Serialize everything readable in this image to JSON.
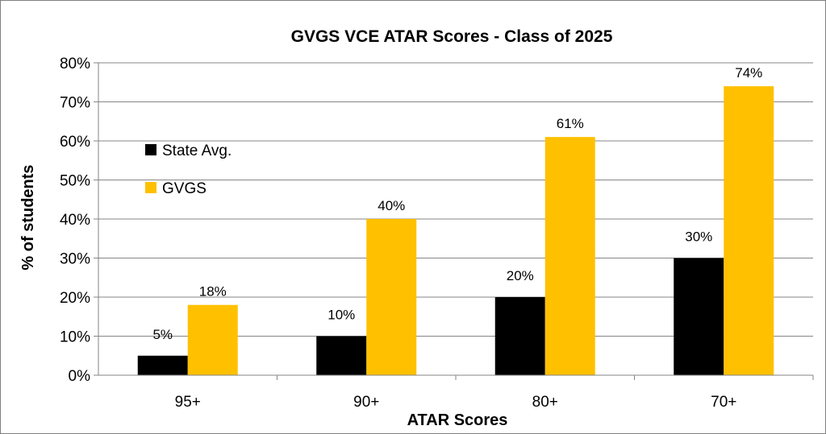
{
  "chart_data": {
    "type": "bar",
    "title": "GVGS VCE ATAR Scores - Class of 2025",
    "xlabel": "ATAR Scores",
    "ylabel": "% of students",
    "categories": [
      "95+",
      "90+",
      "80+",
      "70+"
    ],
    "series": [
      {
        "name": "State Avg.",
        "color": "#000000",
        "values": [
          5,
          10,
          20,
          30
        ],
        "labels": [
          "5%",
          "10%",
          "20%",
          "30%"
        ]
      },
      {
        "name": "GVGS",
        "color": "#FFC000",
        "values": [
          18,
          40,
          61,
          74
        ],
        "labels": [
          "18%",
          "40%",
          "61%",
          "74%"
        ]
      }
    ],
    "ylim": [
      0,
      80
    ],
    "yticks": [
      "0%",
      "10%",
      "20%",
      "30%",
      "40%",
      "50%",
      "60%",
      "70%",
      "80%"
    ],
    "grid": true,
    "legend_position": "left-inside"
  }
}
